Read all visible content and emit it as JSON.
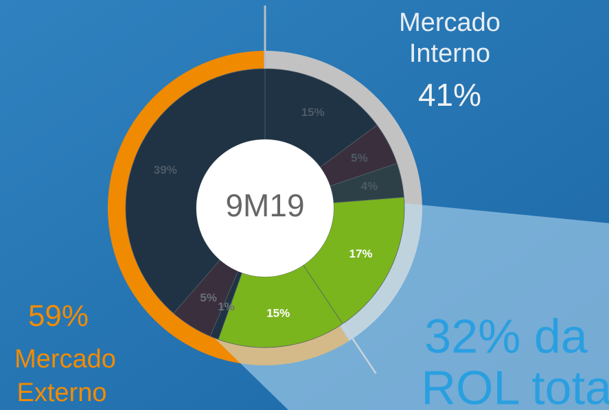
{
  "chart_data": {
    "type": "donut",
    "center_label": "9M19",
    "values": [
      15,
      5,
      4,
      17,
      15,
      1,
      5,
      39
    ],
    "value_labels": [
      "15%",
      "5%",
      "4%",
      "17%",
      "15%",
      "1%",
      "5%",
      "39%"
    ],
    "colors": [
      "#1f3344",
      "#3a2f3d",
      "#2d4048",
      "#7ab51d",
      "#7ab51d",
      "#1f3344",
      "#3a2f3d",
      "#1f3344"
    ],
    "label_colors": [
      "#4f5a66",
      "#4f5a66",
      "#4f5a66",
      "#ffffff",
      "#ffffff",
      "#6b7078",
      "#6b7078",
      "#4f5a66"
    ],
    "ring": [
      {
        "name": [
          "Mercado",
          "Interno"
        ],
        "value": 41,
        "value_label": "41%",
        "color": "#c2c2c2"
      },
      {
        "name": [
          "Mercado",
          "Externo"
        ],
        "value": 59,
        "value_label": "59%",
        "color": "#f08a00"
      }
    ],
    "annotation": [
      "32% da",
      "ROL total"
    ]
  }
}
